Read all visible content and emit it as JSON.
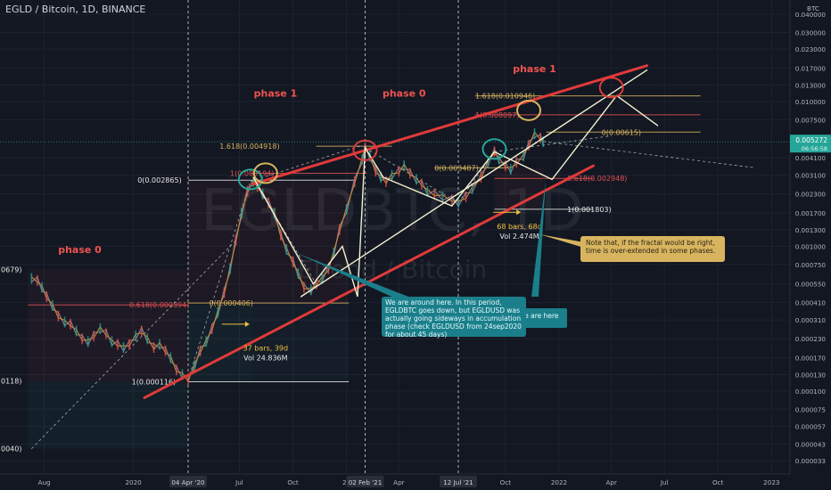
{
  "header": {
    "symbol_line": "EGLD / Bitcoin, 1D, BINANCE",
    "currency": "BTC"
  },
  "watermark": {
    "big": "EGLDBTC, 1D",
    "small": "Elrond / Bitcoin"
  },
  "colors": {
    "background": "#131722",
    "trend_red": "#e03a3a",
    "trend_white": "#f4f1d0",
    "fib_gold": "#d8b45f",
    "fib_red": "#e05252",
    "teal": "#26a69a",
    "note_teal": "#1a7f8a",
    "note_gold": "#d8b45f",
    "last_price_bg": "#26a69a"
  },
  "chart_data": {
    "type": "line",
    "title": "EGLD / Bitcoin, 1D, BINANCE",
    "xlabel": "",
    "ylabel": "BTC",
    "y_scale": "log",
    "grid": true,
    "x_ticks": [
      "Aug",
      "2020",
      "04 Apr '20",
      "Jul",
      "Oct",
      "20",
      "02 Feb '21",
      "Apr",
      "12 Jul '21",
      "Oct",
      "2022",
      "Apr",
      "Jul",
      "Oct",
      "2023"
    ],
    "y_ticks": [
      "0.040000",
      "0.030000",
      "0.023000",
      "0.017000",
      "0.013000",
      "0.010000",
      "0.007500",
      "0.004100",
      "0.003100",
      "0.002300",
      "0.001700",
      "0.001300",
      "0.001000",
      "0.000750",
      "0.000550",
      "0.000410",
      "0.000310",
      "0.000230",
      "0.000170",
      "0.000130",
      "0.000100",
      "0.000075",
      "0.000057",
      "0.000043",
      "0.000033",
      "0.000025"
    ],
    "last_price": {
      "value": "0.005272",
      "countdown": "06:56:58"
    },
    "left_edge_labels": [
      "0679)",
      "0118)",
      "0040)"
    ],
    "fib_labels": [
      {
        "text": "1.618(0.010946)",
        "kind": "gold"
      },
      {
        "text": "1(0.008097)",
        "kind": "red"
      },
      {
        "text": "0(0.00615)",
        "kind": "gold"
      },
      {
        "text": "0(0.003487)",
        "kind": "gold"
      },
      {
        "text": "0.618(0.002948)",
        "kind": "red"
      },
      {
        "text": "1(0.001803)",
        "kind": "white"
      },
      {
        "text": "1.618(0.004918)",
        "kind": "gold"
      },
      {
        "text": "1(0.003194)",
        "kind": "red"
      },
      {
        "text": "0(0.002865)",
        "kind": "white"
      },
      {
        "text": "0.618(0.000394)",
        "kind": "red"
      },
      {
        "text": "0(0.000406)",
        "kind": "gold"
      },
      {
        "text": "1(0.000116)",
        "kind": "white"
      }
    ],
    "phase_labels": [
      "phase 0",
      "phase 1",
      "phase 0",
      "phase 1"
    ],
    "bars_annotations": [
      {
        "text": "37 bars, 39d",
        "vol": "Vol 24.836M"
      },
      {
        "text": "68 bars, 68d",
        "vol": "Vol 2.474M"
      }
    ],
    "series": [
      {
        "values": [
          [
            "2019-07-10",
            0.0006
          ],
          [
            "2019-07-20",
            0.00058
          ],
          [
            "2019-07-28",
            0.00052
          ],
          [
            "2019-08-05",
            0.00045
          ],
          [
            "2019-08-15",
            0.00039
          ],
          [
            "2019-08-25",
            0.00033
          ],
          [
            "2019-09-05",
            0.0003
          ],
          [
            "2019-09-15",
            0.00029
          ],
          [
            "2019-09-25",
            0.00026
          ],
          [
            "2019-10-05",
            0.00023
          ],
          [
            "2019-10-15",
            0.00022
          ],
          [
            "2019-10-25",
            0.00024
          ],
          [
            "2019-11-05",
            0.00027
          ],
          [
            "2019-11-15",
            0.00025
          ],
          [
            "2019-11-25",
            0.00022
          ],
          [
            "2019-12-05",
            0.00021
          ],
          [
            "2019-12-15",
            0.0002
          ],
          [
            "2019-12-25",
            0.00021
          ],
          [
            "2020-01-05",
            0.00024
          ],
          [
            "2020-01-15",
            0.00026
          ],
          [
            "2020-01-25",
            0.00023
          ],
          [
            "2020-02-05",
            0.0002
          ],
          [
            "2020-02-15",
            0.00021
          ],
          [
            "2020-02-25",
            0.00019
          ],
          [
            "2020-03-05",
            0.00017
          ],
          [
            "2020-03-15",
            0.00014
          ],
          [
            "2020-03-25",
            0.00013
          ],
          [
            "2020-04-04",
            0.00012
          ],
          [
            "2020-04-15",
            0.00015
          ],
          [
            "2020-04-25",
            0.00019
          ],
          [
            "2020-05-05",
            0.00022
          ],
          [
            "2020-05-15",
            0.00027
          ],
          [
            "2020-05-25",
            0.00035
          ],
          [
            "2020-06-05",
            0.00048
          ],
          [
            "2020-06-15",
            0.0007
          ],
          [
            "2020-06-25",
            0.0011
          ],
          [
            "2020-07-05",
            0.0017
          ],
          [
            "2020-07-15",
            0.0024
          ],
          [
            "2020-07-25",
            0.0028
          ],
          [
            "2020-08-01",
            0.0026
          ],
          [
            "2020-08-10",
            0.0023
          ],
          [
            "2020-08-20",
            0.002
          ],
          [
            "2020-08-30",
            0.0017
          ],
          [
            "2020-09-10",
            0.0012
          ],
          [
            "2020-09-20",
            0.00095
          ],
          [
            "2020-10-01",
            0.00078
          ],
          [
            "2020-10-10",
            0.00065
          ],
          [
            "2020-10-20",
            0.00052
          ],
          [
            "2020-11-01",
            0.0005
          ],
          [
            "2020-11-10",
            0.00055
          ],
          [
            "2020-11-20",
            0.0006
          ],
          [
            "2020-12-01",
            0.0007
          ],
          [
            "2020-12-10",
            0.0009
          ],
          [
            "2020-12-20",
            0.0013
          ],
          [
            "2021-01-01",
            0.0018
          ],
          [
            "2021-01-15",
            0.0028
          ],
          [
            "2021-01-28",
            0.004
          ],
          [
            "2021-02-02",
            0.0048
          ],
          [
            "2021-02-10",
            0.0042
          ],
          [
            "2021-02-20",
            0.0033
          ],
          [
            "2021-03-01",
            0.003
          ],
          [
            "2021-03-10",
            0.0028
          ],
          [
            "2021-03-20",
            0.0031
          ],
          [
            "2021-04-01",
            0.0033
          ],
          [
            "2021-04-10",
            0.0036
          ],
          [
            "2021-04-20",
            0.0032
          ],
          [
            "2021-05-01",
            0.0029
          ],
          [
            "2021-05-10",
            0.0027
          ],
          [
            "2021-05-20",
            0.0024
          ],
          [
            "2021-06-01",
            0.0023
          ],
          [
            "2021-06-15",
            0.0022
          ],
          [
            "2021-07-01",
            0.0021
          ],
          [
            "2021-07-12",
            0.002
          ],
          [
            "2021-07-25",
            0.0022
          ],
          [
            "2021-08-05",
            0.0025
          ],
          [
            "2021-08-20",
            0.003
          ],
          [
            "2021-09-01",
            0.0038
          ],
          [
            "2021-09-12",
            0.0045
          ],
          [
            "2021-09-20",
            0.004
          ],
          [
            "2021-10-01",
            0.0036
          ],
          [
            "2021-10-10",
            0.0034
          ],
          [
            "2021-10-20",
            0.0038
          ],
          [
            "2021-11-01",
            0.0042
          ],
          [
            "2021-11-10",
            0.005
          ],
          [
            "2021-11-20",
            0.006
          ],
          [
            "2021-11-30",
            0.0056
          ],
          [
            "2021-12-05",
            0.00527
          ]
        ]
      }
    ]
  },
  "notes": {
    "teal": "We are around here. In this period, EGLDBTC goes down, but EGLDUSD was actually going sideways in accumulation phase (check EGLDUSD from 24sep2020 for about 45 days)",
    "teal_tail": "we are here",
    "gold": "Note that, if the fractal would be right, time is over-extended in some phases."
  }
}
